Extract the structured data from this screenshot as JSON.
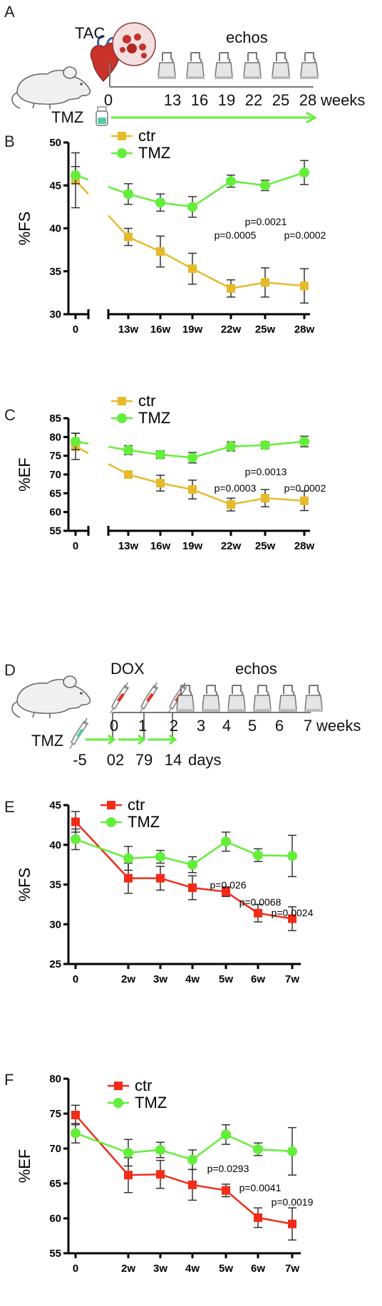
{
  "panels": [
    "A",
    "B",
    "C",
    "D",
    "E",
    "F"
  ],
  "timeline_a": {
    "procedure": "TAC",
    "echos_label": "echos",
    "ticks": [
      "0",
      "13",
      "16",
      "19",
      "22",
      "25",
      "28"
    ],
    "unit": "weeks",
    "drug": "TMZ"
  },
  "timeline_d": {
    "procedure": "DOX",
    "echos_label": "echos",
    "week_ticks": [
      "0",
      "1",
      "2",
      "3",
      "4",
      "5",
      "6",
      "7"
    ],
    "week_unit": "weeks",
    "drug": "TMZ",
    "day_ticks": [
      "-5",
      "02",
      "79",
      "14"
    ],
    "day_unit": "days"
  },
  "colors": {
    "ctr_tac": "#e6bb2b",
    "ctr_dox": "#f22c18",
    "tmz": "#63ee3a",
    "axis": "#000000"
  },
  "chart_data": [
    {
      "type": "line",
      "panel": "B",
      "ylabel": "%FS",
      "ylim": [
        30,
        50
      ],
      "yticks": [
        30,
        35,
        40,
        45,
        50
      ],
      "categories": [
        "0",
        "13w",
        "16w",
        "19w",
        "22w",
        "25w",
        "28w"
      ],
      "broken_axis": true,
      "series": [
        {
          "name": "ctr",
          "marker": "square",
          "color": "#e6bb2b",
          "values": [
            45.6,
            39.0,
            37.3,
            35.3,
            33.0,
            33.7,
            33.3
          ],
          "error": [
            3.2,
            1.0,
            1.8,
            1.8,
            1.0,
            1.7,
            2.0
          ]
        },
        {
          "name": "TMZ",
          "marker": "circle",
          "color": "#63ee3a",
          "values": [
            46.2,
            44.0,
            43.0,
            42.5,
            45.5,
            45.0,
            46.5
          ],
          "error": [
            1.0,
            1.2,
            1.0,
            1.2,
            0.7,
            0.6,
            1.4
          ]
        }
      ],
      "annotations": [
        {
          "text": "p=0.0021",
          "at_x": "25w",
          "at_y": 40.5
        },
        {
          "text": "p=0.0005",
          "at_x": "22w",
          "at_y": 38.9
        },
        {
          "text": "p=0.0002",
          "at_x": "28w",
          "at_y": 38.9
        }
      ]
    },
    {
      "type": "line",
      "panel": "C",
      "ylabel": "%EF",
      "ylim": [
        55,
        85
      ],
      "yticks": [
        55,
        60,
        65,
        70,
        75,
        80,
        85
      ],
      "categories": [
        "0",
        "13w",
        "16w",
        "19w",
        "22w",
        "25w",
        "28w"
      ],
      "broken_axis": true,
      "series": [
        {
          "name": "ctr",
          "marker": "square",
          "color": "#e6bb2b",
          "values": [
            77.5,
            70.0,
            67.7,
            66.0,
            62.0,
            63.7,
            63.0
          ],
          "error": [
            3.5,
            1.0,
            2.1,
            2.5,
            1.7,
            2.3,
            2.6
          ]
        },
        {
          "name": "TMZ",
          "marker": "circle",
          "color": "#63ee3a",
          "values": [
            78.8,
            76.5,
            75.3,
            74.5,
            77.5,
            77.8,
            78.8
          ],
          "error": [
            2.2,
            1.2,
            1.0,
            1.4,
            1.2,
            0.9,
            1.4
          ]
        }
      ],
      "annotations": [
        {
          "text": "p=0.0013",
          "at_x": "25w",
          "at_y": 71.4
        },
        {
          "text": "p=0.0003",
          "at_x": "22w",
          "at_y": 69.0
        },
        {
          "text": "p=0.0002",
          "at_x": "28w",
          "at_y": 69.0
        }
      ]
    },
    {
      "type": "line",
      "panel": "E",
      "ylabel": "%FS",
      "ylim": [
        25,
        45
      ],
      "yticks": [
        25,
        30,
        35,
        40,
        45
      ],
      "categories": [
        "0",
        "2w",
        "3w",
        "4w",
        "5w",
        "6w",
        "7w"
      ],
      "broken_axis": false,
      "series": [
        {
          "name": "ctr",
          "marker": "square",
          "color": "#f22c18",
          "values": [
            42.9,
            35.8,
            35.8,
            34.6,
            34.1,
            31.4,
            30.7
          ],
          "error": [
            1.3,
            1.9,
            1.5,
            1.5,
            0.6,
            1.1,
            1.5
          ]
        },
        {
          "name": "TMZ",
          "marker": "circle",
          "color": "#63ee3a",
          "values": [
            40.7,
            38.3,
            38.5,
            37.5,
            40.4,
            38.7,
            38.6
          ],
          "error": [
            1.3,
            1.5,
            0.8,
            1.0,
            1.2,
            0.8,
            2.6
          ]
        }
      ],
      "annotations": [
        {
          "text": "p=0.026",
          "at_x": "4w",
          "at_y": 36.7
        },
        {
          "text": "p=0.0068",
          "at_x": "5w",
          "at_y": 34.6
        },
        {
          "text": "p=0.0024",
          "at_x": "6w",
          "at_y": 33.3
        }
      ]
    },
    {
      "type": "line",
      "panel": "F",
      "ylabel": "%EF",
      "ylim": [
        55,
        80
      ],
      "yticks": [
        55,
        60,
        65,
        70,
        75,
        80
      ],
      "categories": [
        "0",
        "2w",
        "3w",
        "4w",
        "5w",
        "6w",
        "7w"
      ],
      "broken_axis": false,
      "series": [
        {
          "name": "ctr",
          "marker": "square",
          "color": "#f22c18",
          "values": [
            74.8,
            66.2,
            66.3,
            64.8,
            64.0,
            60.1,
            59.2
          ],
          "error": [
            1.4,
            2.5,
            2.0,
            2.2,
            0.9,
            1.4,
            2.3
          ]
        },
        {
          "name": "TMZ",
          "marker": "circle",
          "color": "#63ee3a",
          "values": [
            72.2,
            69.4,
            69.8,
            68.4,
            72.0,
            69.9,
            69.6
          ],
          "error": [
            1.4,
            1.9,
            1.1,
            1.4,
            1.4,
            0.9,
            3.4
          ]
        }
      ],
      "annotations": [
        {
          "text": "p=0.0293",
          "at_x": "4w",
          "at_y": 67.2
        },
        {
          "text": "p=0.0041",
          "at_x": "5w",
          "at_y": 64.5
        },
        {
          "text": "p=0.0019",
          "at_x": "6w",
          "at_y": 62.8
        }
      ]
    }
  ]
}
